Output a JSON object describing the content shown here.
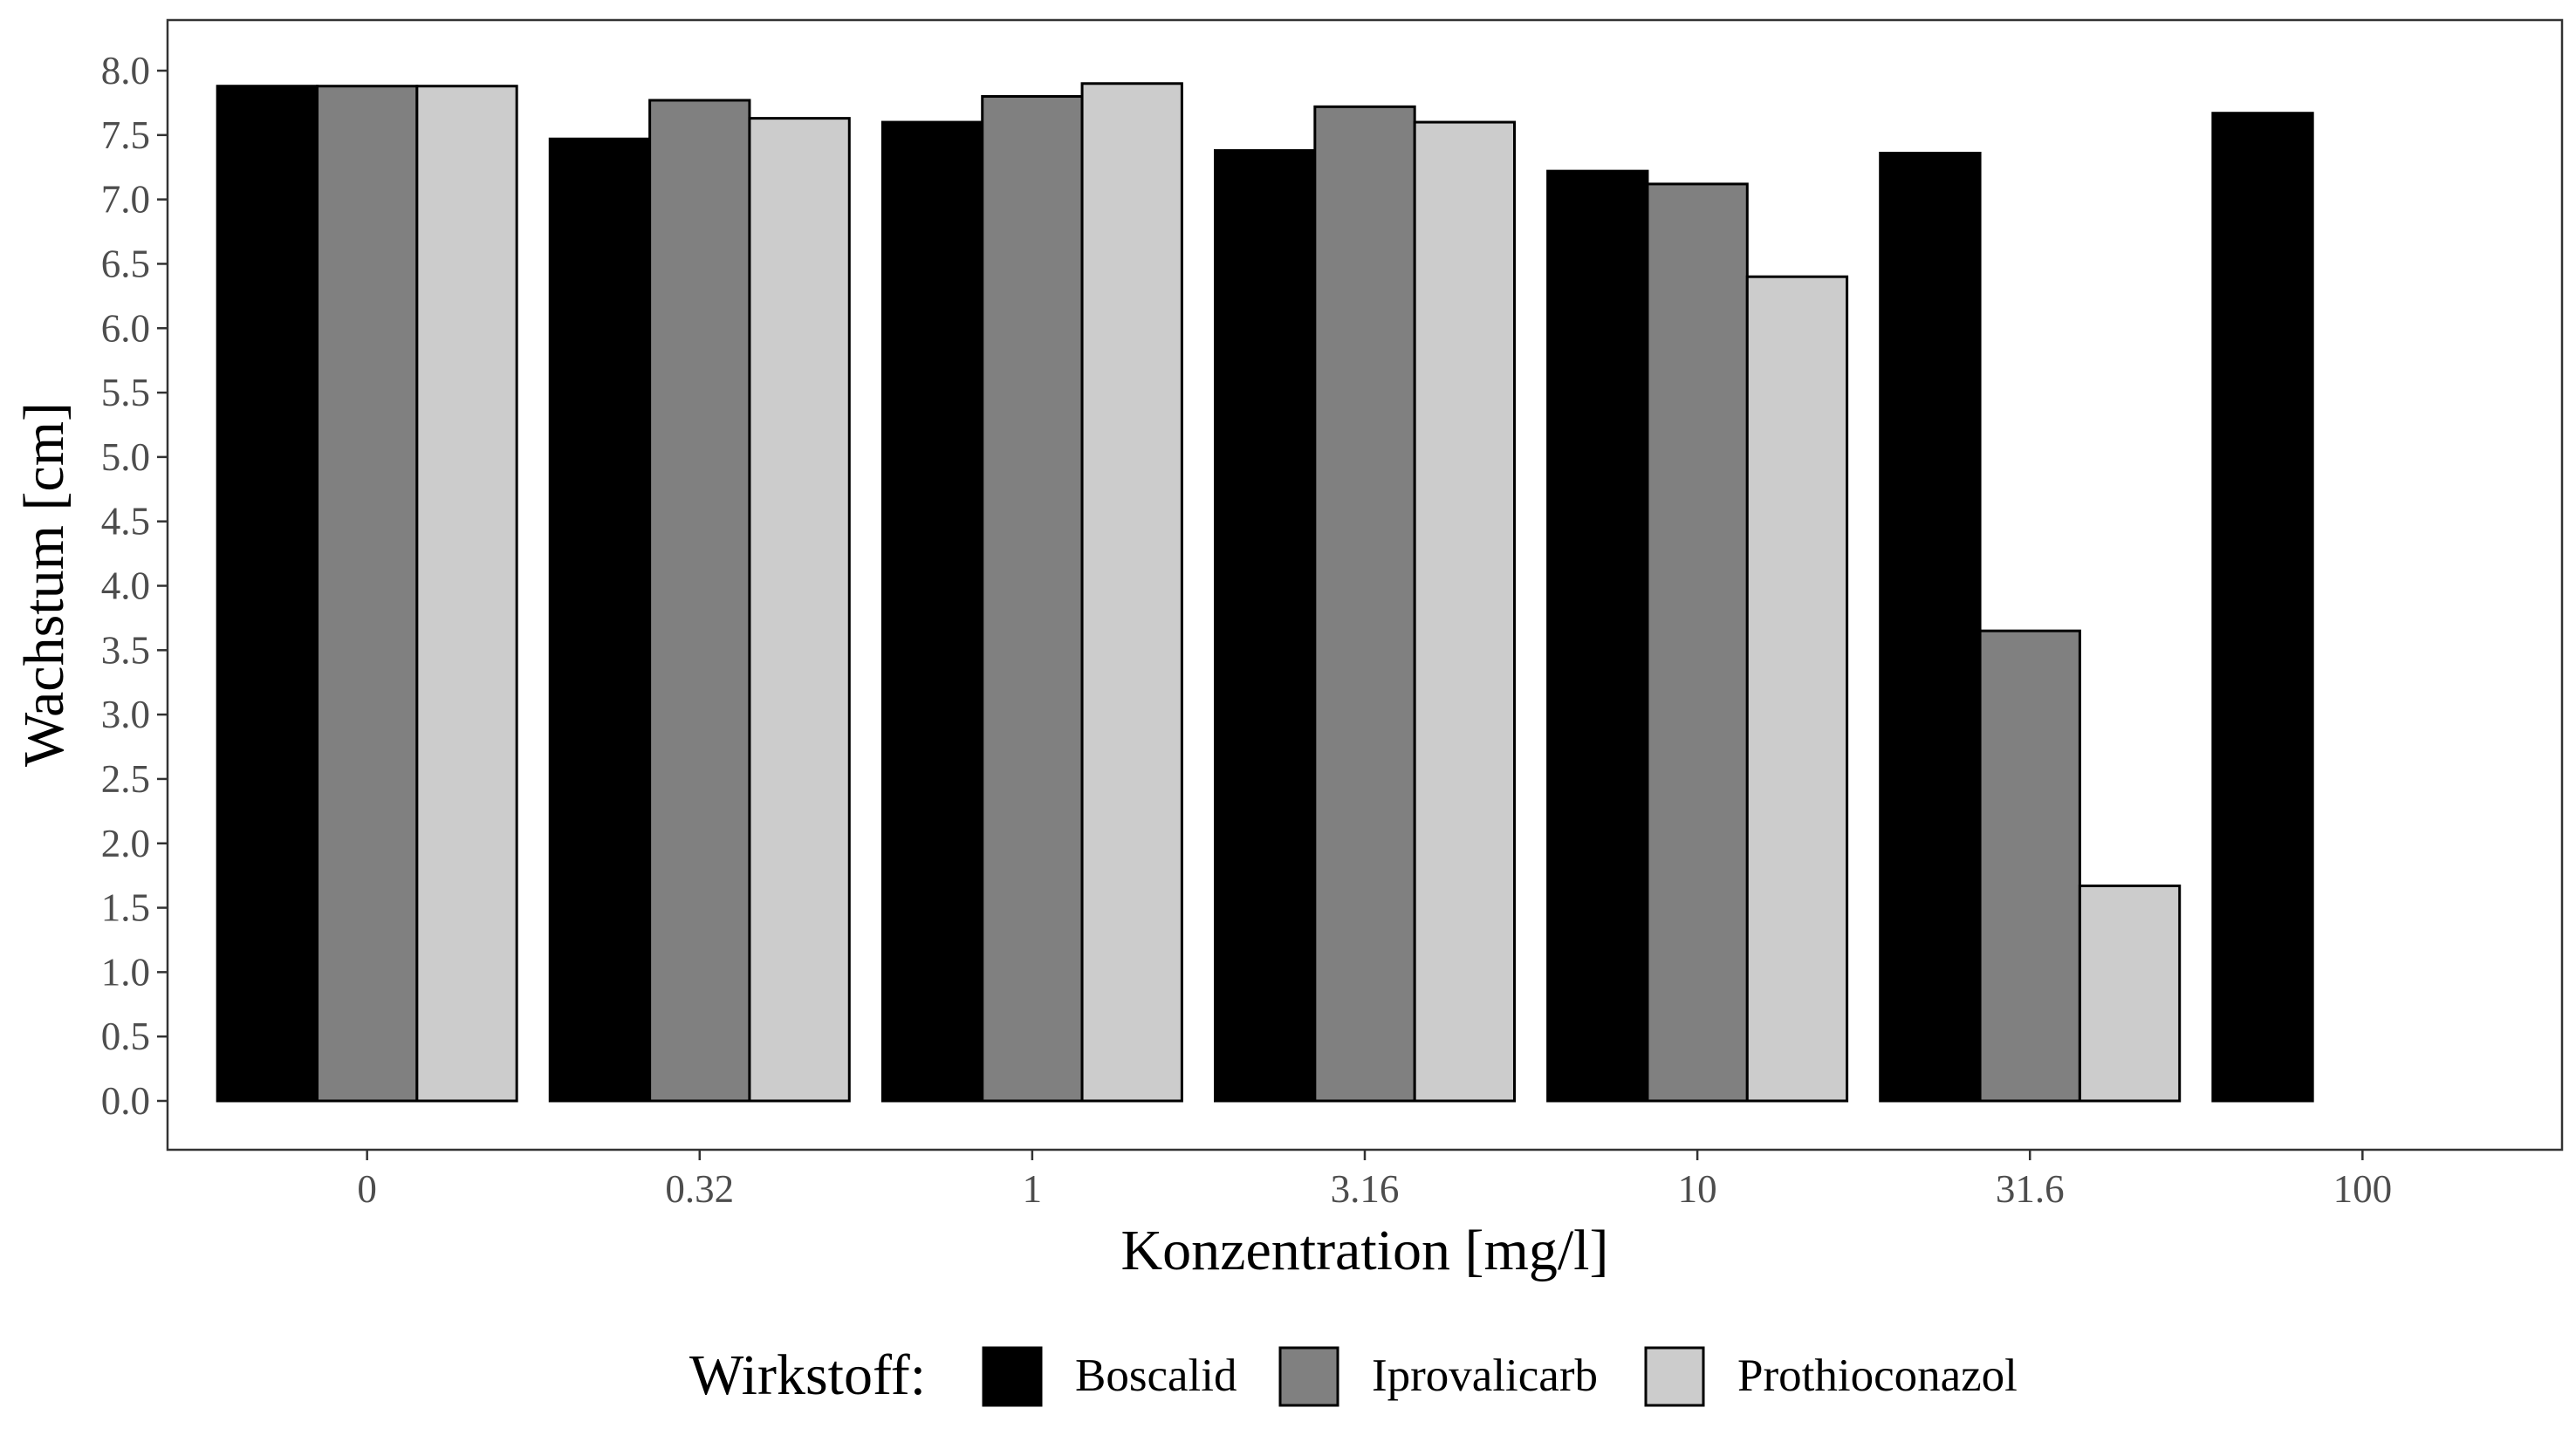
{
  "chart_data": {
    "type": "bar",
    "xlabel": "Konzentration [mg/l]",
    "ylabel": "Wachstum [cm]",
    "categories": [
      "0",
      "0.32",
      "1",
      "3.16",
      "10",
      "31.6",
      "100"
    ],
    "ylim": [
      0,
      8.35
    ],
    "yticks": [
      "0.0",
      "0.5",
      "1.0",
      "1.5",
      "2.0",
      "2.5",
      "3.0",
      "3.5",
      "4.0",
      "4.5",
      "5.0",
      "5.5",
      "6.0",
      "6.5",
      "7.0",
      "7.5",
      "8.0"
    ],
    "grid": false,
    "legend": {
      "title": "Wirkstoff:",
      "position": "bottom"
    },
    "series": [
      {
        "name": "Boscalid",
        "color": "#000000",
        "values": [
          7.88,
          7.47,
          7.6,
          7.38,
          7.22,
          7.36,
          7.67
        ]
      },
      {
        "name": "Iprovalicarb",
        "color": "#808080",
        "values": [
          7.88,
          7.77,
          7.8,
          7.72,
          7.12,
          3.65,
          0
        ]
      },
      {
        "name": "Prothioconazol",
        "color": "#cccccc",
        "values": [
          7.88,
          7.63,
          7.9,
          7.6,
          6.4,
          1.67,
          0
        ]
      }
    ]
  }
}
